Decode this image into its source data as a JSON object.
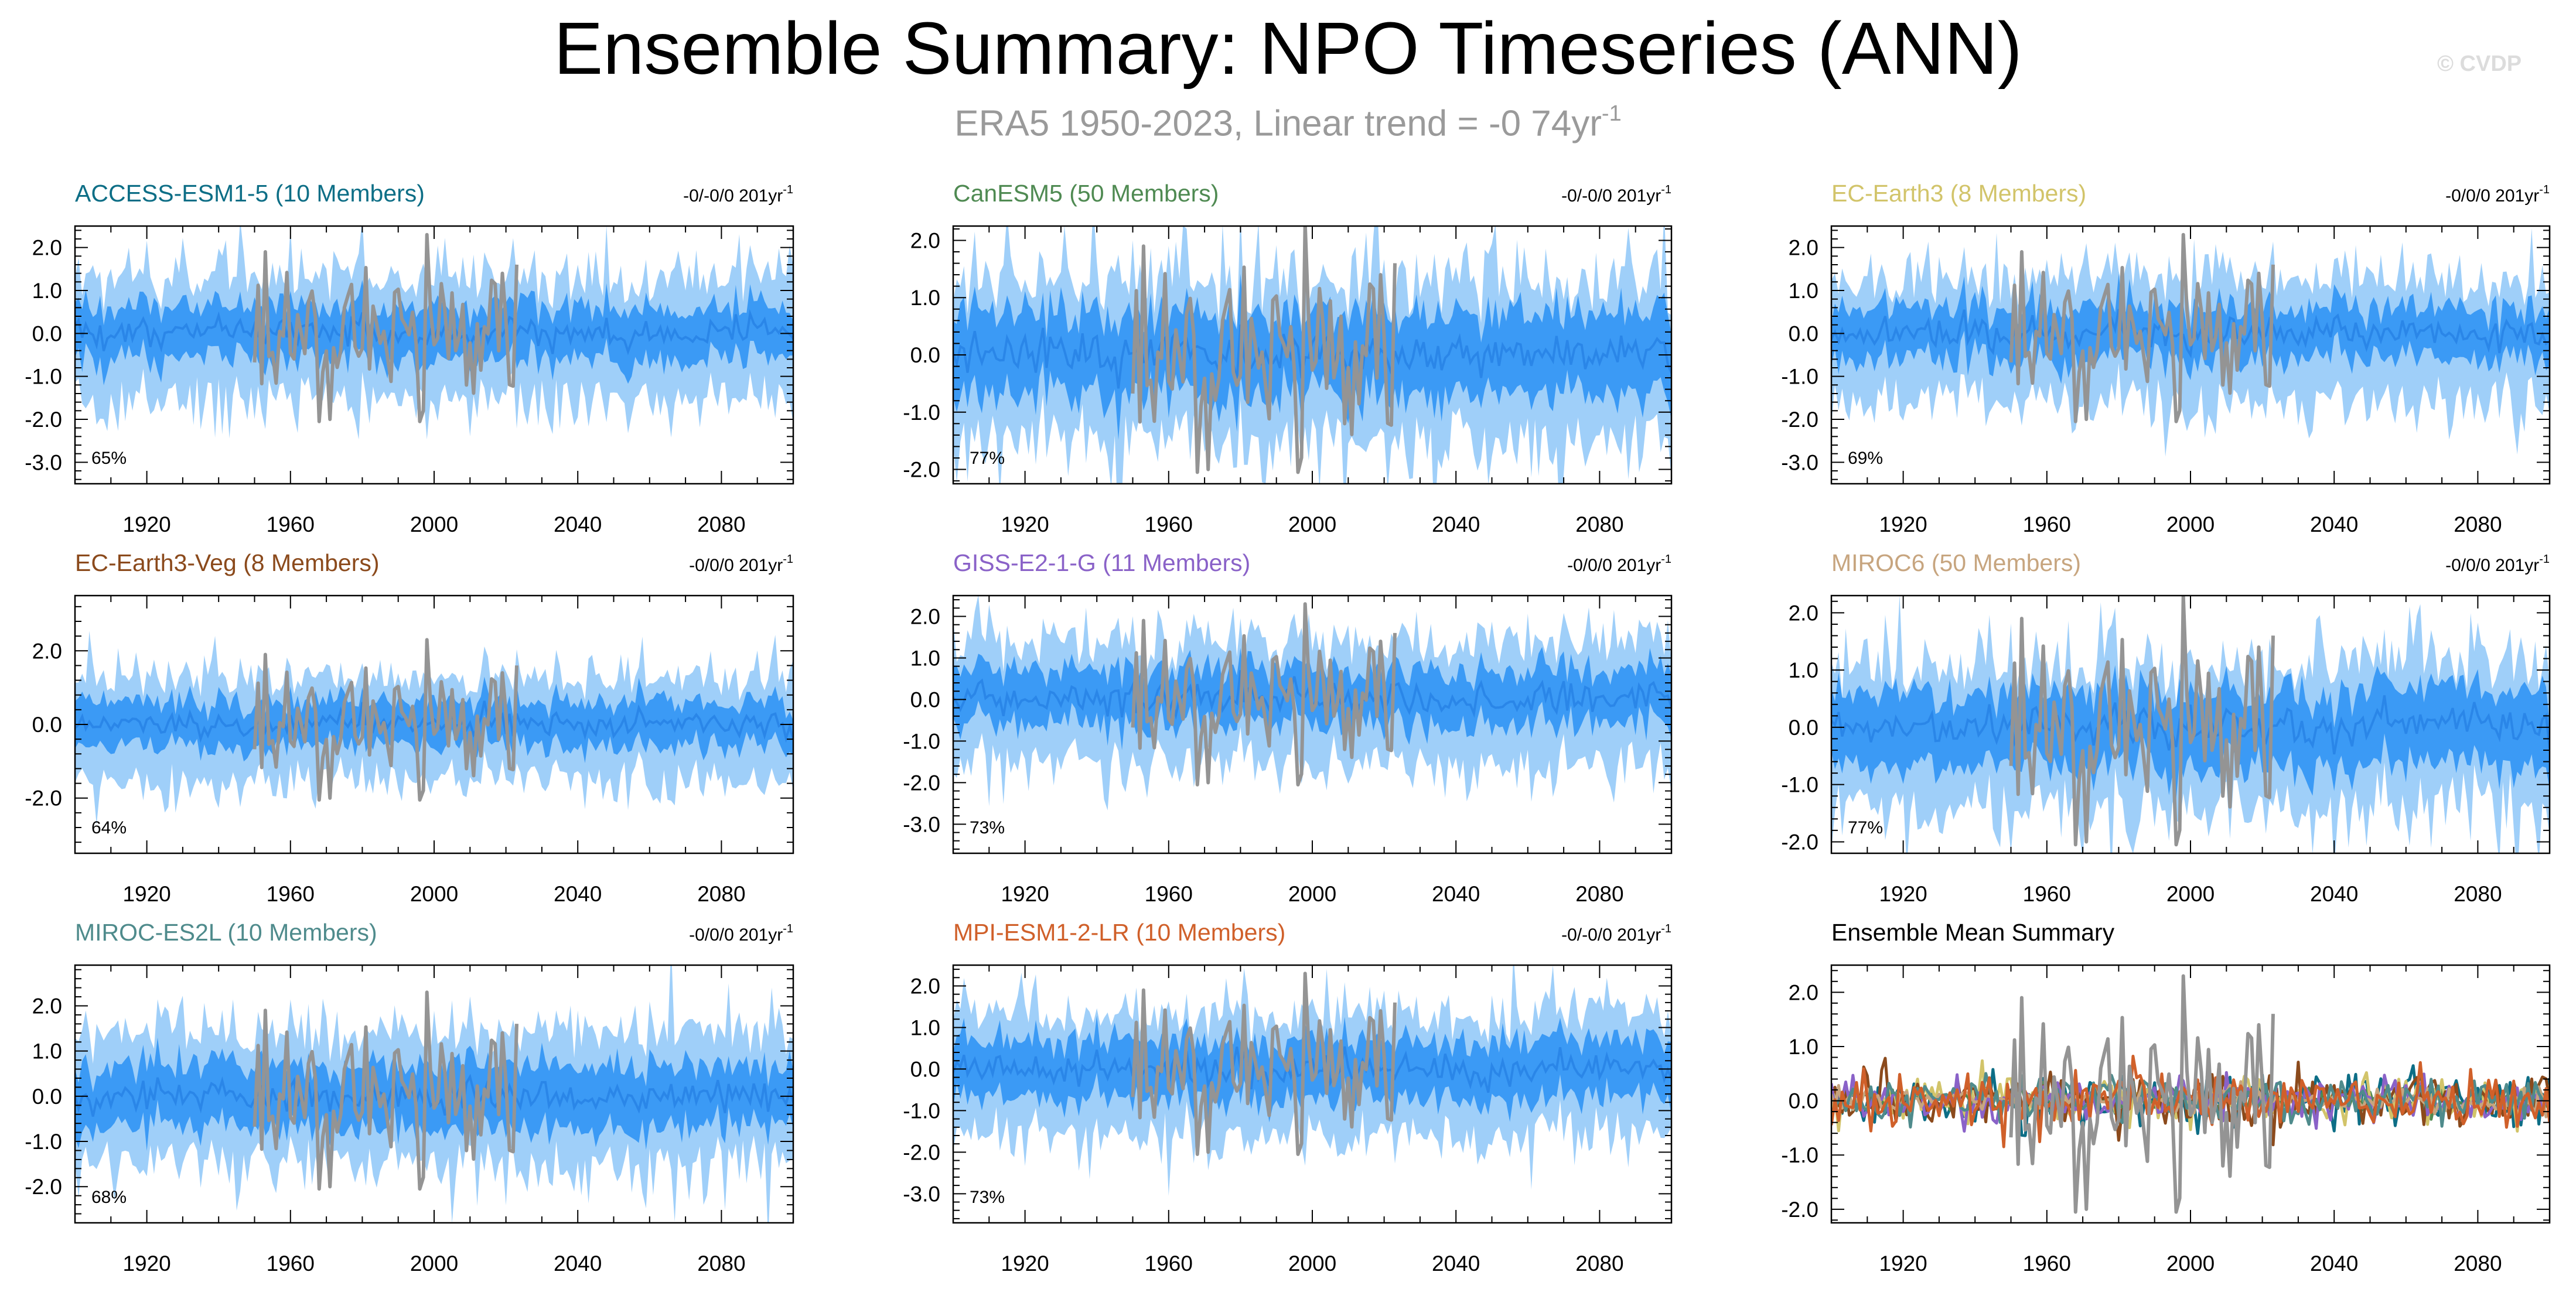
{
  "figure": {
    "title": "Ensemble Summary: NPO Timeseries (ANN)",
    "subtitle_text": "ERA5 1950-2023, Linear trend = -0 74yr",
    "subtitle_sup": "-1",
    "watermark": "© CVDP"
  },
  "colors": {
    "band_outer": "#9fcff9",
    "band_inner": "#3b9af5",
    "ensemble_mean": "#2a86e8",
    "observations": "#949494",
    "axis": "#000000"
  },
  "chart_data": [
    {
      "type": "area",
      "title": "ACCESS-ESM1-5 (10 Members)",
      "title_color": "#0d6e86",
      "trend_text": "-0/-0/0 201yr",
      "trend_sup": "-1",
      "percent_label": "65%",
      "xlim": [
        1900,
        2100
      ],
      "xticks": [
        1920,
        1960,
        2000,
        2040,
        2080
      ],
      "ylim": [
        -3.5,
        2.5
      ],
      "yticks": [
        2.0,
        1.0,
        0.0,
        -1.0,
        -2.0,
        -3.0
      ],
      "ytick_labels": [
        "2.0",
        "1.0",
        "0.0",
        "-1.0",
        "-2.0",
        "-3.0"
      ],
      "series": [
        {
          "role": "outer-range",
          "x_range": [
            1900,
            2100
          ],
          "lower_mean": -1.6,
          "upper_mean": 1.3
        },
        {
          "role": "inner-range",
          "x_range": [
            1900,
            2100
          ],
          "lower_mean": -0.6,
          "upper_mean": 0.6
        },
        {
          "role": "ensemble-mean",
          "x_range": [
            1900,
            2100
          ],
          "mean": 0.0
        },
        {
          "role": "observations",
          "x_range": [
            1950,
            2023
          ],
          "range": [
            -2.1,
            2.3
          ]
        }
      ]
    },
    {
      "type": "area",
      "title": "CanESM5 (50 Members)",
      "title_color": "#4f8a52",
      "trend_text": "-0/-0/0 201yr",
      "trend_sup": "-1",
      "percent_label": "77%",
      "xlim": [
        1900,
        2100
      ],
      "xticks": [
        1920,
        1960,
        2000,
        2040,
        2080
      ],
      "ylim": [
        -2.25,
        2.25
      ],
      "yticks": [
        2.0,
        1.0,
        0.0,
        -1.0,
        -2.0
      ],
      "ytick_labels": [
        "2.0",
        "1.0",
        "0.0",
        "-1.0",
        "-2.0"
      ],
      "series": [
        {
          "role": "outer-range",
          "x_range": [
            1900,
            2100
          ],
          "lower_mean": -1.6,
          "upper_mean": 1.3
        },
        {
          "role": "inner-range",
          "x_range": [
            1900,
            2100
          ],
          "lower_mean": -0.7,
          "upper_mean": 0.7
        },
        {
          "role": "ensemble-mean",
          "x_range": [
            1900,
            2100
          ],
          "mean": 0.0
        },
        {
          "role": "observations",
          "x_range": [
            1950,
            2023
          ],
          "range": [
            -2.1,
            2.3
          ]
        }
      ]
    },
    {
      "type": "area",
      "title": "EC-Earth3 (8 Members)",
      "title_color": "#d2c46a",
      "trend_text": "-0/0/0 201yr",
      "trend_sup": "-1",
      "percent_label": "69%",
      "xlim": [
        1900,
        2100
      ],
      "xticks": [
        1920,
        1960,
        2000,
        2040,
        2080
      ],
      "ylim": [
        -3.5,
        2.5
      ],
      "yticks": [
        2.0,
        1.0,
        0.0,
        -1.0,
        -2.0,
        -3.0
      ],
      "ytick_labels": [
        "2.0",
        "1.0",
        "0.0",
        "-1.0",
        "-2.0",
        "-3.0"
      ],
      "series": [
        {
          "role": "outer-range",
          "x_range": [
            1900,
            2100
          ],
          "lower_mean": -1.6,
          "upper_mean": 1.3
        },
        {
          "role": "inner-range",
          "x_range": [
            1900,
            2100
          ],
          "lower_mean": -0.6,
          "upper_mean": 0.6
        },
        {
          "role": "ensemble-mean",
          "x_range": [
            1900,
            2100
          ],
          "mean": 0.0
        },
        {
          "role": "observations",
          "x_range": [
            1950,
            2023
          ],
          "range": [
            -2.1,
            2.3
          ]
        }
      ]
    },
    {
      "type": "area",
      "title": "EC-Earth3-Veg (8 Members)",
      "title_color": "#8b4a1c",
      "trend_text": "-0/0/0 201yr",
      "trend_sup": "-1",
      "percent_label": "64%",
      "xlim": [
        1900,
        2100
      ],
      "xticks": [
        1920,
        1960,
        2000,
        2040,
        2080
      ],
      "ylim": [
        -3.5,
        3.5
      ],
      "yticks": [
        2.0,
        0.0,
        -2.0
      ],
      "ytick_labels": [
        "2.0",
        "0.0",
        "-2.0"
      ],
      "series": [
        {
          "role": "outer-range",
          "x_range": [
            1900,
            2100
          ],
          "lower_mean": -1.6,
          "upper_mean": 1.3
        },
        {
          "role": "inner-range",
          "x_range": [
            1900,
            2100
          ],
          "lower_mean": -0.6,
          "upper_mean": 0.6
        },
        {
          "role": "ensemble-mean",
          "x_range": [
            1900,
            2100
          ],
          "mean": 0.0
        },
        {
          "role": "observations",
          "x_range": [
            1950,
            2023
          ],
          "range": [
            -2.1,
            2.3
          ]
        }
      ]
    },
    {
      "type": "area",
      "title": "GISS-E2-1-G (11 Members)",
      "title_color": "#8a62c8",
      "trend_text": "-0/0/0 201yr",
      "trend_sup": "-1",
      "percent_label": "73%",
      "xlim": [
        1900,
        2100
      ],
      "xticks": [
        1920,
        1960,
        2000,
        2040,
        2080
      ],
      "ylim": [
        -3.7,
        2.5
      ],
      "yticks": [
        2.0,
        1.0,
        0.0,
        -1.0,
        -2.0,
        -3.0
      ],
      "ytick_labels": [
        "2.0",
        "1.0",
        "0.0",
        "-1.0",
        "-2.0",
        "-3.0"
      ],
      "series": [
        {
          "role": "outer-range",
          "x_range": [
            1900,
            2100
          ],
          "lower_mean": -1.6,
          "upper_mean": 1.4
        },
        {
          "role": "inner-range",
          "x_range": [
            1900,
            2100
          ],
          "lower_mean": -0.6,
          "upper_mean": 0.7
        },
        {
          "role": "ensemble-mean",
          "x_range": [
            1900,
            2100
          ],
          "mean": 0.0
        },
        {
          "role": "observations",
          "x_range": [
            1950,
            2023
          ],
          "range": [
            -2.1,
            2.3
          ]
        }
      ]
    },
    {
      "type": "area",
      "title": "MIROC6 (50 Members)",
      "title_color": "#c7a57f",
      "trend_text": "-0/0/0 201yr",
      "trend_sup": "-1",
      "percent_label": "77%",
      "xlim": [
        1900,
        2100
      ],
      "xticks": [
        1920,
        1960,
        2000,
        2040,
        2080
      ],
      "ylim": [
        -2.2,
        2.3
      ],
      "yticks": [
        2.0,
        1.0,
        0.0,
        -1.0,
        -2.0
      ],
      "ytick_labels": [
        "2.0",
        "1.0",
        "0.0",
        "-1.0",
        "-2.0"
      ],
      "series": [
        {
          "role": "outer-range",
          "x_range": [
            1900,
            2100
          ],
          "lower_mean": -1.5,
          "upper_mean": 1.1
        },
        {
          "role": "inner-range",
          "x_range": [
            1900,
            2100
          ],
          "lower_mean": -0.7,
          "upper_mean": 0.6
        },
        {
          "role": "ensemble-mean",
          "x_range": [
            1900,
            2100
          ],
          "mean": 0.0
        },
        {
          "role": "observations",
          "x_range": [
            1950,
            2023
          ],
          "range": [
            -2.1,
            2.3
          ]
        }
      ]
    },
    {
      "type": "area",
      "title": "MIROC-ES2L (10 Members)",
      "title_color": "#4f8b8c",
      "trend_text": "-0/0/0 201yr",
      "trend_sup": "-1",
      "percent_label": "68%",
      "xlim": [
        1900,
        2100
      ],
      "xticks": [
        1920,
        1960,
        2000,
        2040,
        2080
      ],
      "ylim": [
        -2.8,
        2.9
      ],
      "yticks": [
        2.0,
        1.0,
        0.0,
        -1.0,
        -2.0
      ],
      "ytick_labels": [
        "2.0",
        "1.0",
        "0.0",
        "-1.0",
        "-2.0"
      ],
      "series": [
        {
          "role": "outer-range",
          "x_range": [
            1900,
            2100
          ],
          "lower_mean": -1.5,
          "upper_mean": 1.5
        },
        {
          "role": "inner-range",
          "x_range": [
            1900,
            2100
          ],
          "lower_mean": -0.7,
          "upper_mean": 0.7
        },
        {
          "role": "ensemble-mean",
          "x_range": [
            1900,
            2100
          ],
          "mean": 0.0
        },
        {
          "role": "observations",
          "x_range": [
            1950,
            2023
          ],
          "range": [
            -2.1,
            2.3
          ]
        }
      ]
    },
    {
      "type": "area",
      "title": "MPI-ESM1-2-LR (10 Members)",
      "title_color": "#d0602a",
      "trend_text": "-0/-0/0 201yr",
      "trend_sup": "-1",
      "percent_label": "73%",
      "xlim": [
        1900,
        2100
      ],
      "xticks": [
        1920,
        1960,
        2000,
        2040,
        2080
      ],
      "ylim": [
        -3.7,
        2.5
      ],
      "yticks": [
        2.0,
        1.0,
        0.0,
        -1.0,
        -2.0,
        -3.0
      ],
      "ytick_labels": [
        "2.0",
        "1.0",
        "0.0",
        "-1.0",
        "-2.0",
        "-3.0"
      ],
      "series": [
        {
          "role": "outer-range",
          "x_range": [
            1900,
            2100
          ],
          "lower_mean": -1.6,
          "upper_mean": 1.4
        },
        {
          "role": "inner-range",
          "x_range": [
            1900,
            2100
          ],
          "lower_mean": -0.7,
          "upper_mean": 0.7
        },
        {
          "role": "ensemble-mean",
          "x_range": [
            1900,
            2100
          ],
          "mean": 0.0
        },
        {
          "role": "observations",
          "x_range": [
            1950,
            2023
          ],
          "range": [
            -2.1,
            2.3
          ]
        }
      ]
    },
    {
      "type": "line",
      "title": "Ensemble Mean Summary",
      "title_color": "#000000",
      "xlim": [
        1900,
        2100
      ],
      "xticks": [
        1920,
        1960,
        2000,
        2040,
        2080
      ],
      "ylim": [
        -2.25,
        2.5
      ],
      "yticks": [
        2.0,
        1.0,
        0.0,
        -1.0,
        -2.0
      ],
      "ytick_labels": [
        "2.0",
        "1.0",
        "0.0",
        "-1.0",
        "-2.0"
      ],
      "series": [
        {
          "color": "#0d6e86",
          "x_range": [
            1900,
            2100
          ],
          "amplitude": 0.45
        },
        {
          "color": "#4f8a52",
          "x_range": [
            1900,
            2100
          ],
          "amplitude": 0.2
        },
        {
          "color": "#d2c46a",
          "x_range": [
            1900,
            2100
          ],
          "amplitude": 0.4
        },
        {
          "color": "#8b4a1c",
          "x_range": [
            1900,
            2100
          ],
          "amplitude": 0.5
        },
        {
          "color": "#8a62c8",
          "x_range": [
            1900,
            2100
          ],
          "amplitude": 0.35
        },
        {
          "color": "#c7a57f",
          "x_range": [
            1900,
            2100
          ],
          "amplitude": 0.2
        },
        {
          "color": "#4f8b8c",
          "x_range": [
            1900,
            2100
          ],
          "amplitude": 0.4
        },
        {
          "color": "#d0602a",
          "x_range": [
            1900,
            2100
          ],
          "amplitude": 0.5
        },
        {
          "color": "#949494",
          "x_range": [
            1950,
            2023
          ],
          "range": [
            -2.1,
            2.3
          ]
        }
      ]
    }
  ]
}
